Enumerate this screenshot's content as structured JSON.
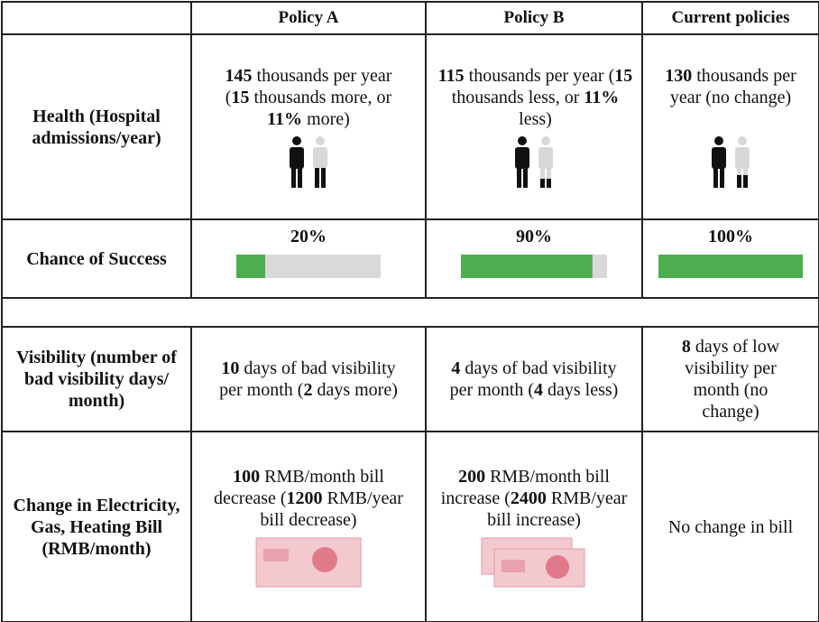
{
  "table": {
    "header": [
      "Policy A",
      "Policy B",
      "Current policies"
    ],
    "bar_range": [
      0,
      100
    ],
    "bar_color": "#4cae4f",
    "track_color": "#d9d9d9",
    "rows": [
      {
        "label": "Health (Hospital admissions/year)",
        "cells": [
          [
            {
              "text": "145",
              "bold": true
            },
            {
              "text": " thousands per year (",
              "bold": false
            },
            {
              "text": "15",
              "bold": true
            },
            {
              "text": " thousands more, or ",
              "bold": false
            },
            {
              "text": "11%",
              "bold": true
            },
            {
              "text": " more)",
              "bold": false
            }
          ],
          [
            {
              "text": "115",
              "bold": true
            },
            {
              "text": " thousands per year (",
              "bold": false
            },
            {
              "text": "15",
              "bold": true
            },
            {
              "text": " thousands less, or ",
              "bold": false
            },
            {
              "text": "11%",
              "bold": true
            },
            {
              "text": " less)",
              "bold": false
            }
          ],
          [
            {
              "text": "130",
              "bold": true
            },
            {
              "text": " thousands per year (no change)",
              "bold": false
            }
          ]
        ]
      },
      {
        "label": "Chance of Success",
        "cells": [
          {
            "value": 20,
            "label": "20%"
          },
          {
            "value": 90,
            "label": "90%"
          },
          {
            "value": 100,
            "label": "100%"
          }
        ]
      },
      {
        "label": "Visibility (number of bad visibility days/ month)",
        "cells": [
          [
            {
              "text": "10",
              "bold": true
            },
            {
              "text": " days of bad visibility per month (",
              "bold": false
            },
            {
              "text": "2",
              "bold": true
            },
            {
              "text": " days more)",
              "bold": false
            }
          ],
          [
            {
              "text": "4",
              "bold": true
            },
            {
              "text": " days of bad visibility per month (",
              "bold": false
            },
            {
              "text": "4",
              "bold": true
            },
            {
              "text": " days less)",
              "bold": false
            }
          ],
          [
            {
              "text": "8",
              "bold": true
            },
            {
              "text": " days of low visibility per month (no change)",
              "bold": false
            }
          ]
        ]
      },
      {
        "label": "Change in Electricity, Gas, Heating Bill (RMB/month)",
        "cells": [
          [
            {
              "text": "100",
              "bold": true
            },
            {
              "text": " RMB/month bill decrease (",
              "bold": false
            },
            {
              "text": "1200",
              "bold": true
            },
            {
              "text": " RMB/year bill decrease)",
              "bold": false
            }
          ],
          [
            {
              "text": "200",
              "bold": true
            },
            {
              "text": " RMB/month bill increase (",
              "bold": false
            },
            {
              "text": "2400",
              "bold": true
            },
            {
              "text": " RMB/year bill increase)",
              "bold": false
            }
          ],
          [
            {
              "text": "No change in bill",
              "bold": false
            }
          ]
        ]
      }
    ]
  }
}
